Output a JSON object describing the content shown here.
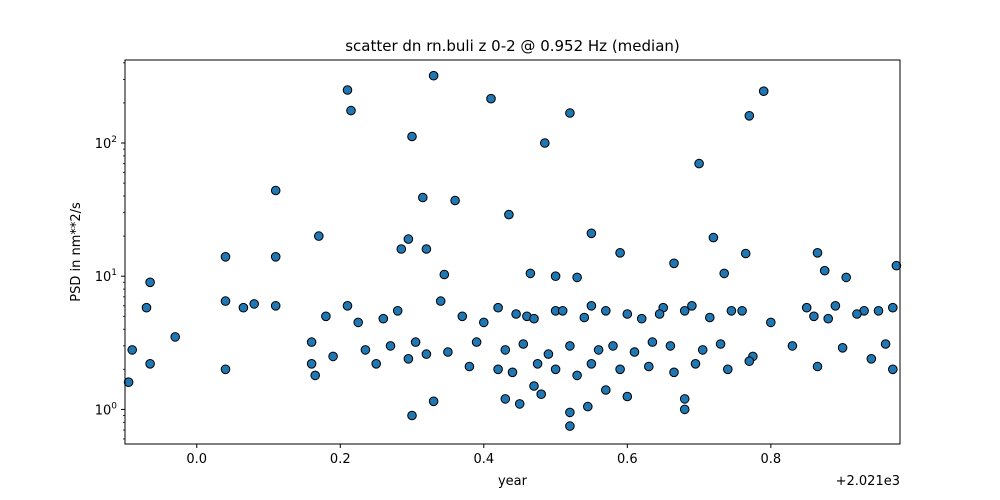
{
  "chart_data": {
    "type": "scatter",
    "title": "scatter dn rn.buli z 0-2 @ 0.952 Hz (median)",
    "xlabel": "year",
    "ylabel": "PSD in nm**2/s",
    "x_offset_label": "+2.021e3",
    "xlim": [
      -0.1,
      0.98
    ],
    "ylim": [
      0.55,
      420
    ],
    "yscale": "log",
    "xticks": [
      {
        "value": 0.0,
        "label": "0.0"
      },
      {
        "value": 0.2,
        "label": "0.2"
      },
      {
        "value": 0.4,
        "label": "0.4"
      },
      {
        "value": 0.6,
        "label": "0.6"
      },
      {
        "value": 0.8,
        "label": "0.8"
      }
    ],
    "yticks": [
      {
        "value": 1,
        "base": "10",
        "exp": "0"
      },
      {
        "value": 10,
        "base": "10",
        "exp": "1"
      },
      {
        "value": 100,
        "base": "10",
        "exp": "2"
      }
    ],
    "grid": false,
    "legend": "none",
    "marker_color": "#1f77b4",
    "marker_edge_color": "#000000",
    "x": [
      0.21,
      0.215,
      0.33,
      0.41,
      0.52,
      0.79,
      0.77,
      0.3,
      0.485,
      0.7,
      0.11,
      0.315,
      0.36,
      0.435,
      0.17,
      0.295,
      0.55,
      0.72,
      0.285,
      0.32,
      0.59,
      0.765,
      0.865,
      0.975,
      -0.065,
      0.04,
      0.11,
      0.665,
      0.905,
      0.875,
      0.345,
      0.465,
      0.5,
      0.53,
      0.735,
      0.21,
      0.28,
      0.34,
      0.42,
      0.46,
      0.5,
      0.55,
      0.6,
      0.65,
      0.69,
      0.76,
      0.85,
      0.89,
      0.93,
      0.97,
      -0.09,
      -0.07,
      -0.03,
      0.04,
      0.065,
      0.08,
      0.11,
      0.16,
      0.18,
      0.225,
      0.26,
      0.37,
      0.4,
      0.445,
      0.47,
      0.51,
      0.54,
      0.57,
      0.62,
      0.645,
      0.68,
      0.715,
      0.745,
      0.8,
      0.86,
      0.88,
      0.92,
      0.95,
      0.16,
      0.19,
      0.235,
      0.27,
      0.305,
      0.35,
      0.39,
      0.43,
      0.455,
      0.49,
      0.52,
      0.56,
      0.58,
      0.61,
      0.635,
      0.66,
      0.705,
      0.73,
      0.775,
      0.83,
      0.9,
      0.96,
      -0.095,
      -0.065,
      0.04,
      0.165,
      0.25,
      0.295,
      0.32,
      0.38,
      0.42,
      0.44,
      0.475,
      0.5,
      0.53,
      0.55,
      0.59,
      0.63,
      0.665,
      0.695,
      0.74,
      0.77,
      0.865,
      0.94,
      0.97,
      0.3,
      0.33,
      0.43,
      0.45,
      0.48,
      0.52,
      0.545,
      0.68,
      0.6,
      0.57,
      0.47,
      0.52,
      0.68
    ],
    "y": [
      250,
      175,
      320,
      215,
      168,
      245,
      160,
      112,
      100,
      70,
      44,
      39,
      37,
      29,
      20,
      19,
      21,
      19.5,
      16,
      16,
      15,
      14.8,
      15,
      12,
      9,
      14,
      14,
      12.5,
      9.8,
      11,
      10.3,
      10.5,
      10,
      9.8,
      10.5,
      6,
      5.5,
      6.5,
      5.8,
      5,
      5.5,
      6,
      5.2,
      5.8,
      6,
      5.5,
      5.8,
      6,
      5.5,
      5.8,
      2.8,
      5.8,
      3.5,
      6.5,
      5.8,
      6.2,
      6,
      3.2,
      5,
      4.5,
      4.8,
      5,
      4.5,
      5.2,
      4.8,
      5.5,
      4.9,
      5.5,
      4.8,
      5.2,
      5.5,
      4.9,
      5.5,
      4.5,
      5,
      4.8,
      5.2,
      5.5,
      2.2,
      2.5,
      2.8,
      3,
      3.2,
      2.7,
      3.2,
      2.8,
      3.1,
      2.6,
      3,
      2.8,
      3,
      2.7,
      3.2,
      3,
      2.8,
      3.1,
      2.5,
      3,
      2.9,
      3.1,
      1.6,
      2.2,
      2.0,
      1.8,
      2.2,
      2.4,
      2.6,
      2.1,
      2.0,
      1.9,
      2.2,
      2.0,
      1.8,
      2.2,
      2.0,
      2.1,
      1.9,
      2.2,
      2.0,
      2.3,
      2.1,
      2.4,
      2.0,
      0.9,
      1.15,
      1.2,
      1.1,
      1.3,
      0.95,
      1.05,
      1.2,
      1.25,
      1.4,
      1.5,
      0.75,
      1.0
    ]
  }
}
